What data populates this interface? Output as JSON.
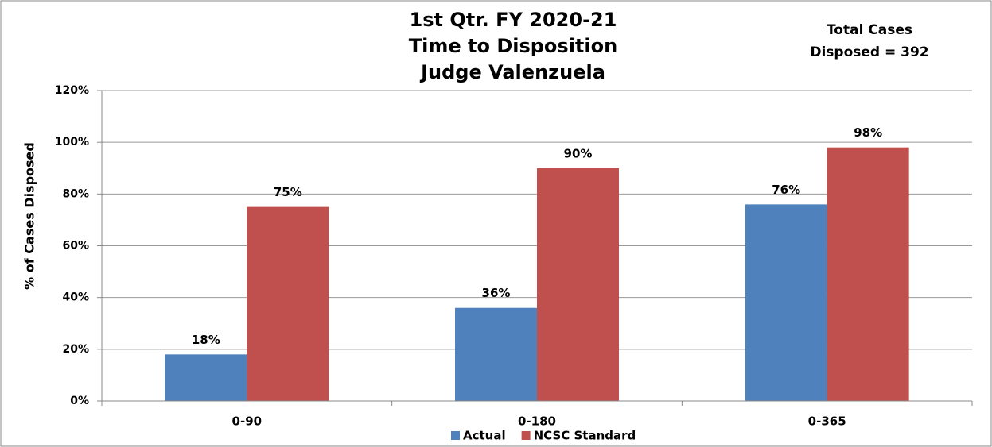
{
  "chart_data": {
    "type": "bar",
    "title": [
      "1st Qtr. FY 2020-21",
      "Time to Disposition",
      "Judge Valenzuela"
    ],
    "annotation": [
      "Total Cases",
      "Disposed = 392"
    ],
    "y_label": "% of Cases Disposed",
    "categories": [
      "0-90",
      "0-180",
      "0-365"
    ],
    "series": [
      {
        "name": "Actual",
        "color": "#4f81bd",
        "values": [
          18,
          36,
          76
        ],
        "value_labels": [
          "18%",
          "36%",
          "76%"
        ]
      },
      {
        "name": "NCSC Standard",
        "color": "#c0504d",
        "values": [
          75,
          90,
          98
        ],
        "value_labels": [
          "75%",
          "90%",
          "98%"
        ]
      }
    ],
    "ylim": [
      0,
      120
    ],
    "yticks": [
      {
        "value": 0,
        "label": "0%"
      },
      {
        "value": 20,
        "label": "20%"
      },
      {
        "value": 40,
        "label": "40%"
      },
      {
        "value": 60,
        "label": "60%"
      },
      {
        "value": 80,
        "label": "80%"
      },
      {
        "value": 100,
        "label": "100%"
      },
      {
        "value": 120,
        "label": "120%"
      }
    ],
    "grid": true,
    "legend": "bottom"
  }
}
